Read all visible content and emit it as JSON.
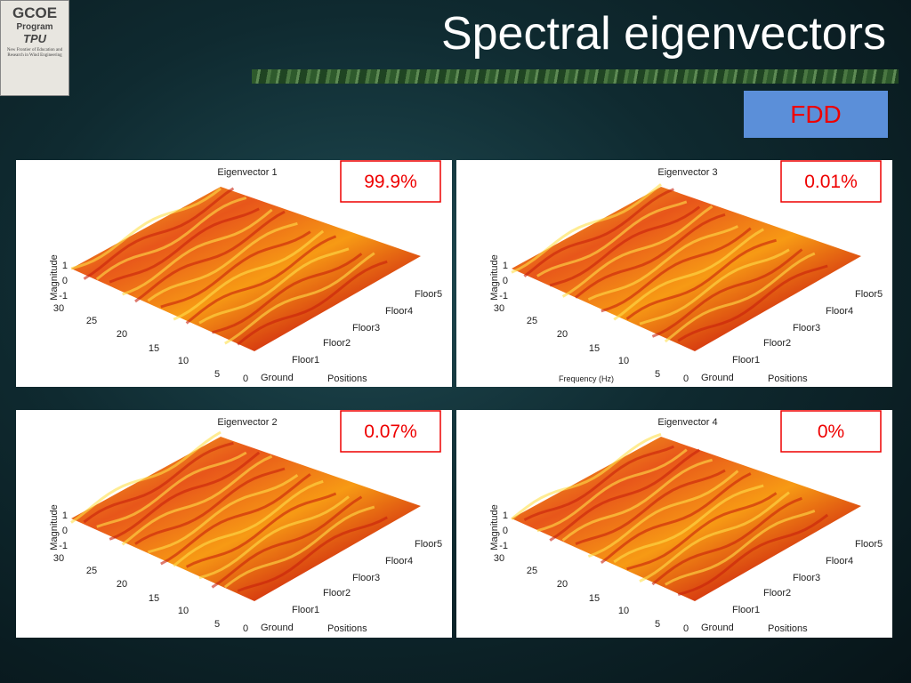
{
  "logo": {
    "name": "GCOE",
    "program": "Program",
    "school": "TPU",
    "motto": "New Frontier of Education and Research in Wind Engineering"
  },
  "header": {
    "title": "Spectral eigenvectors"
  },
  "method": "FDD",
  "panels": [
    {
      "title": "Eigenvector 1",
      "share": "99.9%",
      "z_label": "Magnitude",
      "z_ticks": [
        1,
        0,
        -1
      ],
      "freq_ticks": [
        30,
        25,
        20,
        15,
        10,
        5,
        0
      ],
      "positions": [
        "Ground",
        "Floor1",
        "Floor2",
        "Floor3",
        "Floor4",
        "Floor5"
      ],
      "positions_label": "Positions"
    },
    {
      "title": "Eigenvector 3",
      "share": "0.01%",
      "z_label": "Magnitude",
      "z_ticks": [
        1,
        0,
        -1
      ],
      "freq_ticks": [
        30,
        25,
        20,
        15,
        10,
        5,
        0
      ],
      "positions": [
        "Ground",
        "Floor1",
        "Floor2",
        "Floor3",
        "Floor4",
        "Floor5"
      ],
      "positions_label": "Positions",
      "freq_label": "Frequency (Hz)"
    },
    {
      "title": "Eigenvector 2",
      "share": "0.07%",
      "z_label": "Magnitude",
      "z_ticks": [
        1,
        0,
        -1
      ],
      "freq_ticks": [
        30,
        25,
        20,
        15,
        10,
        5,
        0
      ],
      "positions": [
        "Ground",
        "Floor1",
        "Floor2",
        "Floor3",
        "Floor4",
        "Floor5"
      ],
      "positions_label": "Positions"
    },
    {
      "title": "Eigenvector 4",
      "share": "0%",
      "z_label": "Magnitude",
      "z_ticks": [
        1,
        0,
        -1
      ],
      "freq_ticks": [
        30,
        25,
        20,
        15,
        10,
        5,
        0
      ],
      "positions": [
        "Ground",
        "Floor1",
        "Floor2",
        "Floor3",
        "Floor4",
        "Floor5"
      ],
      "positions_label": "Positions"
    }
  ]
}
